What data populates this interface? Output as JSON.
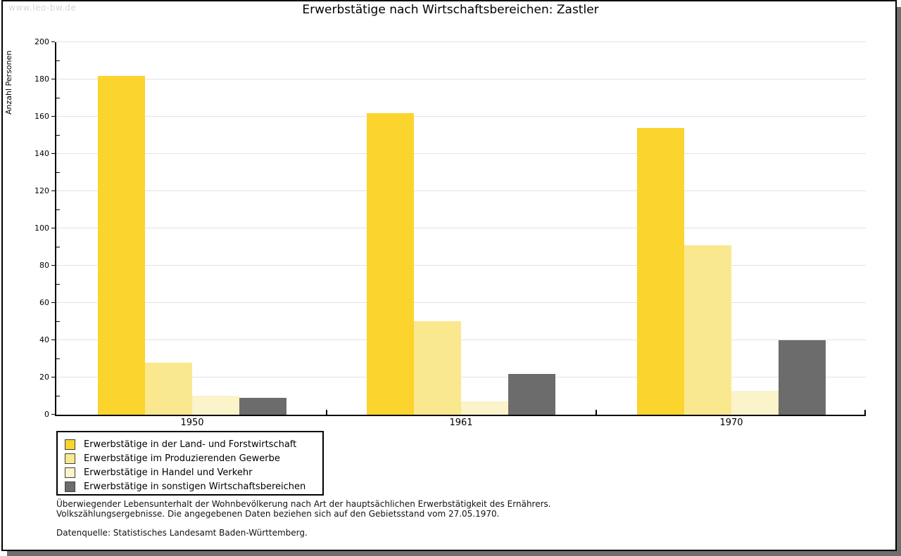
{
  "watermark": "www.leo-bw.de",
  "header": {
    "title": "Erwerbstätige nach Wirtschaftsbereichen: Zastler"
  },
  "chart_data": {
    "type": "bar",
    "title": "Erwerbstätige nach Wirtschaftsbereichen: Zastler",
    "xlabel": "",
    "ylabel": "Anzahl Personen",
    "categories": [
      "1950",
      "1961",
      "1970"
    ],
    "series": [
      {
        "name": "Erwerbstätige in der Land- und Forstwirtschaft",
        "color": "#FBD42D",
        "values": [
          182,
          162,
          154
        ]
      },
      {
        "name": "Erwerbstätige im Produzierenden Gewerbe",
        "color": "#FAE88E",
        "values": [
          28,
          50,
          91
        ]
      },
      {
        "name": "Erwerbstätige in Handel und Verkehr",
        "color": "#FBF3C9",
        "values": [
          10,
          7,
          13
        ]
      },
      {
        "name": "Erwerbstätige in sonstigen Wirtschaftsbereichen",
        "color": "#6C6C6C",
        "values": [
          9,
          22,
          40
        ]
      }
    ],
    "ylim": [
      0,
      200
    ],
    "yticks": [
      0,
      20,
      40,
      60,
      80,
      100,
      120,
      140,
      160,
      180,
      200
    ],
    "minor_tick_step": 10,
    "grid": true,
    "legend_position": "bottom-left",
    "colors": {
      "grid": "#E2E2E2",
      "axis": "#000000",
      "frame_shadow": "#6E6E6E",
      "watermark_text": "#D6D6D6"
    }
  },
  "footnotes": {
    "line1": "Überwiegender Lebensunterhalt der Wohnbevölkerung nach Art der hauptsächlichen Erwerbstätigkeit des Ernährers.",
    "line2": "Volkszählungsergebnisse. Die angegebenen Daten beziehen sich auf den Gebietsstand vom 27.05.1970.",
    "source": "Datenquelle: Statistisches Landesamt Baden-Württemberg."
  }
}
